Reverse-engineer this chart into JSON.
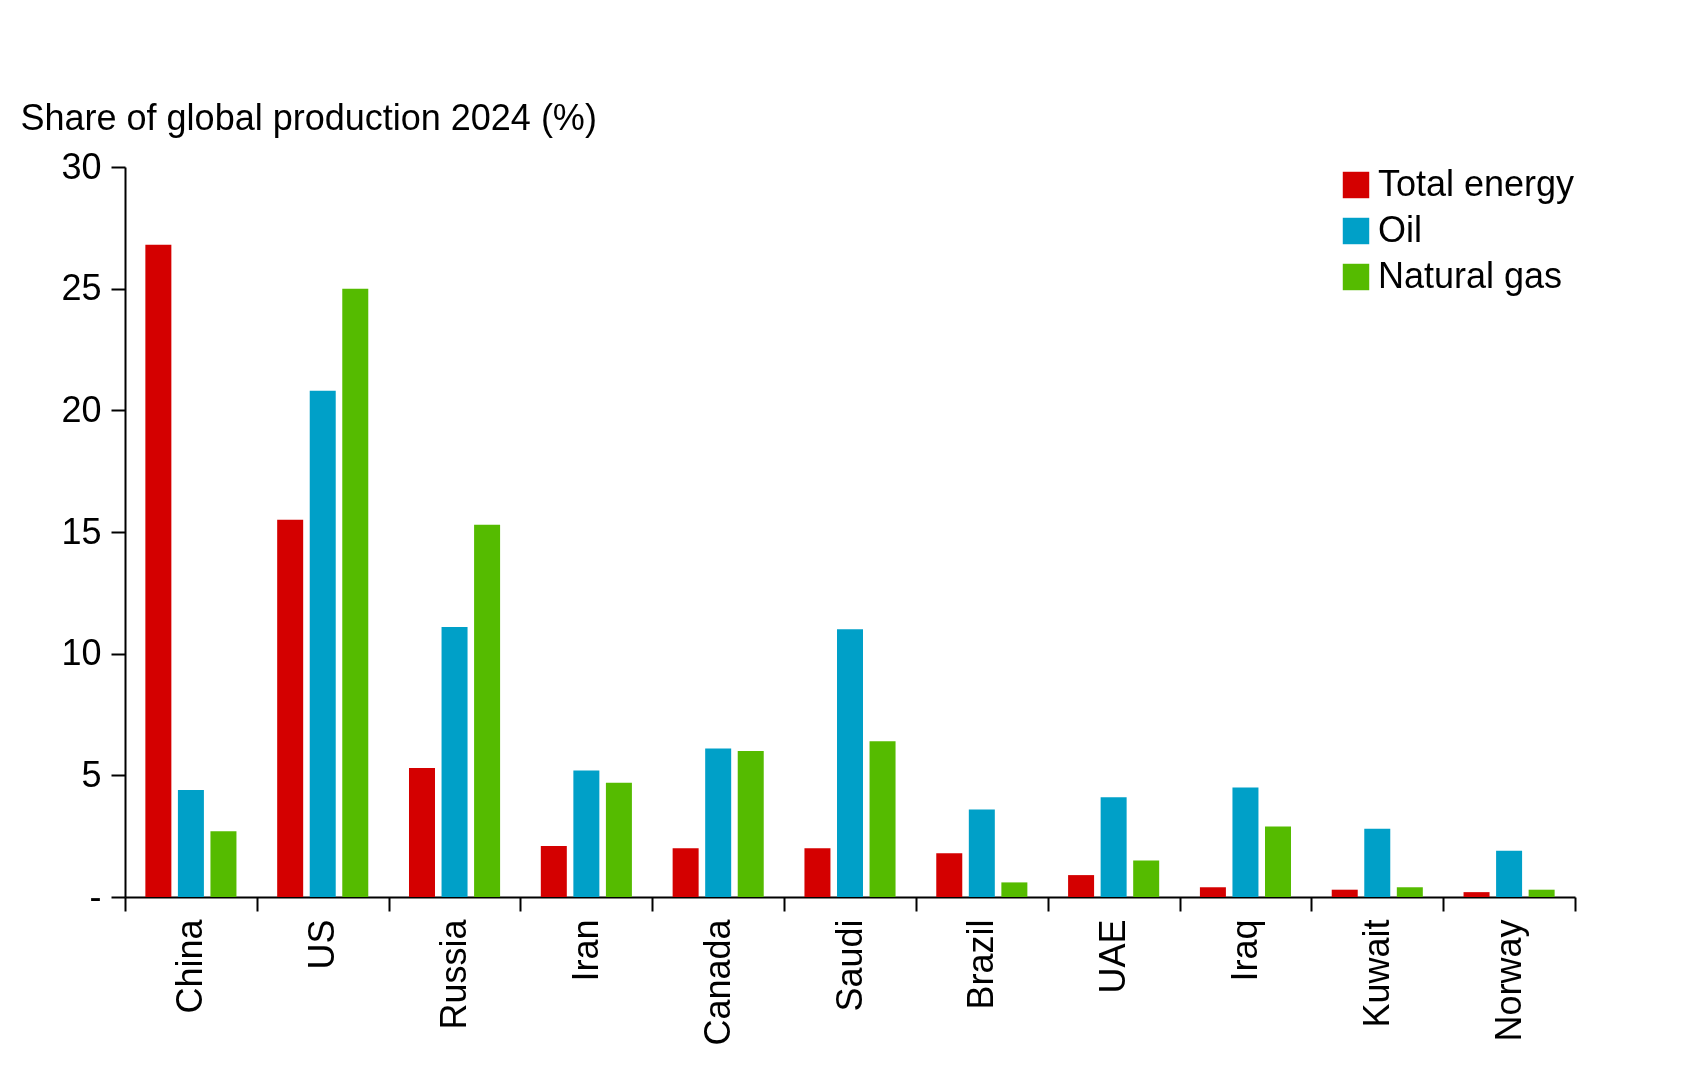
{
  "chart_data": {
    "type": "bar",
    "ylabel": "Share of global production 2024 (%)",
    "categories": [
      "China",
      "US",
      "Russia",
      "Iran",
      "Canada",
      "Saudi",
      "Brazil",
      "UAE",
      "Iraq",
      "Kuwait",
      "Norway"
    ],
    "series": [
      {
        "name": "Total energy",
        "color": "#d40000",
        "values": [
          26.8,
          15.5,
          5.3,
          2.1,
          2.0,
          2.0,
          1.8,
          0.9,
          0.4,
          0.3,
          0.2
        ]
      },
      {
        "name": "Oil",
        "color": "#00a0c8",
        "values": [
          4.4,
          20.8,
          11.1,
          5.2,
          6.1,
          11.0,
          3.6,
          4.1,
          4.5,
          2.8,
          1.9
        ]
      },
      {
        "name": "Natural gas",
        "color": "#55bb00",
        "values": [
          2.7,
          25.0,
          15.3,
          4.7,
          6.0,
          6.4,
          0.6,
          1.5,
          2.9,
          0.4,
          0.3
        ]
      }
    ],
    "ylim": [
      0,
      30
    ],
    "yticks": [
      {
        "value": 0,
        "label": "-"
      },
      5,
      10,
      15,
      20,
      25,
      30
    ],
    "grid": false,
    "legend": "top right"
  }
}
